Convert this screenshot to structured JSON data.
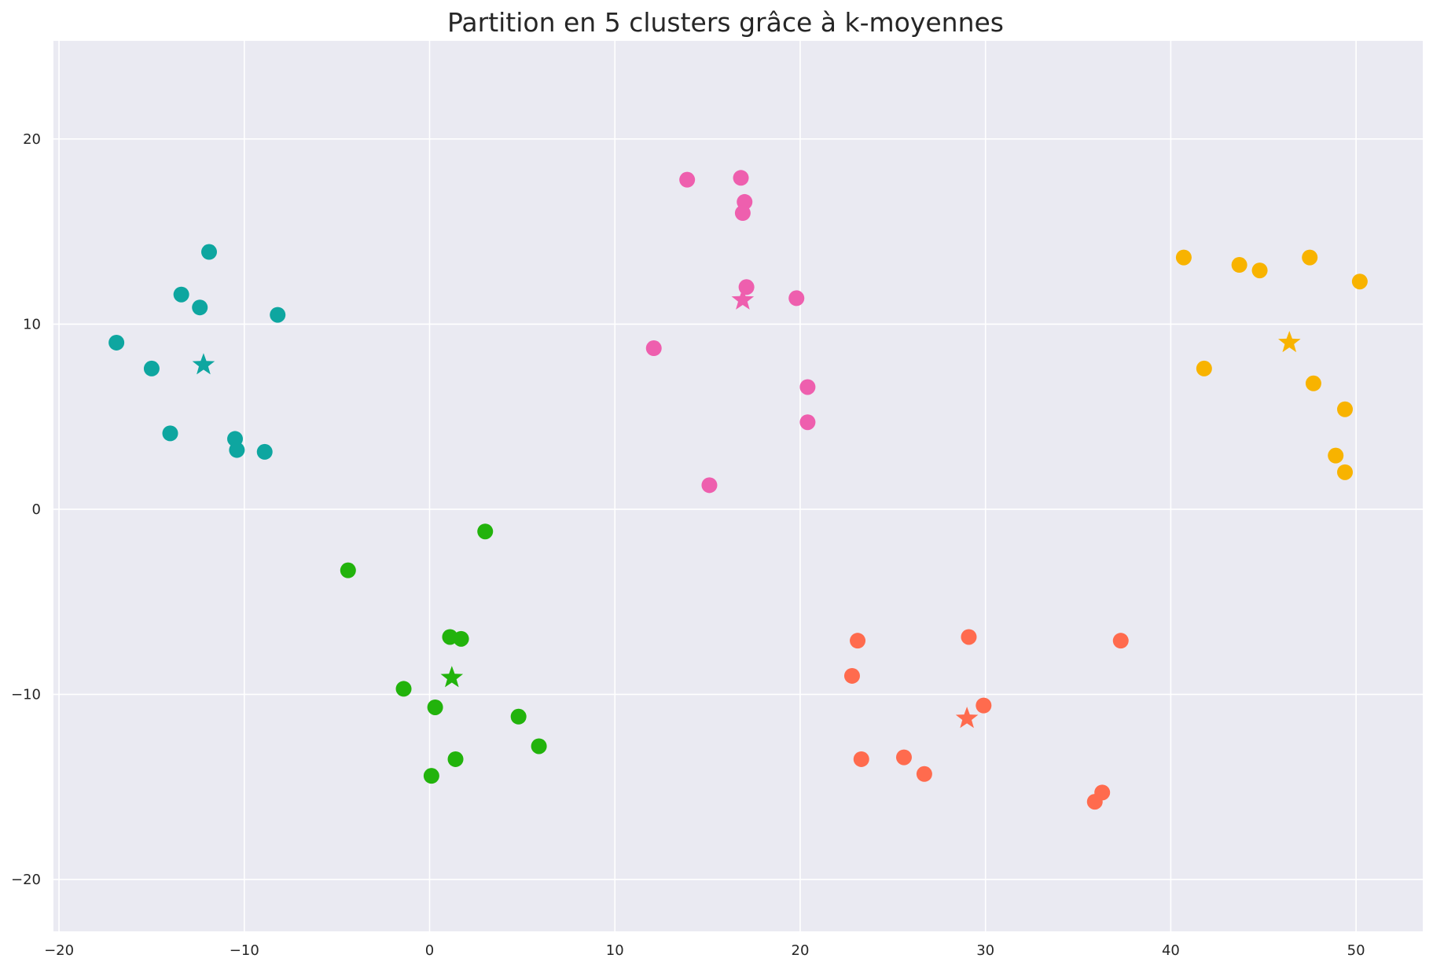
{
  "chart_data": {
    "type": "scatter",
    "title": "Partition en 5 clusters grâce à k-moyennes",
    "xlabel": "",
    "ylabel": "",
    "xlim": [
      -20.3,
      53.6
    ],
    "ylim": [
      -22.8,
      25.3
    ],
    "xticks": [
      -20,
      -10,
      0,
      10,
      20,
      30,
      40,
      50
    ],
    "yticks": [
      -20,
      -10,
      0,
      10,
      20
    ],
    "xtick_labels": [
      "−20",
      "−10",
      "0",
      "10",
      "20",
      "30",
      "40",
      "50"
    ],
    "ytick_labels": [
      "−20",
      "−10",
      "0",
      "10",
      "20"
    ],
    "grid": true,
    "background": "#eaeaf2",
    "legend": "none",
    "series": [
      {
        "color": "#0ea6a0",
        "points": [
          {
            "x": -11.9,
            "y": 13.9
          },
          {
            "x": -13.4,
            "y": 11.6
          },
          {
            "x": -12.4,
            "y": 10.9
          },
          {
            "x": -8.2,
            "y": 10.5
          },
          {
            "x": -16.9,
            "y": 9.0
          },
          {
            "x": -15.0,
            "y": 7.6
          },
          {
            "x": -14.0,
            "y": 4.1
          },
          {
            "x": -10.5,
            "y": 3.8
          },
          {
            "x": -10.4,
            "y": 3.2
          },
          {
            "x": -8.9,
            "y": 3.1
          }
        ],
        "centroid": {
          "x": -12.2,
          "y": 7.8
        }
      },
      {
        "color": "#22b30c",
        "points": [
          {
            "x": 3.0,
            "y": -1.2
          },
          {
            "x": -4.4,
            "y": -3.3
          },
          {
            "x": 1.1,
            "y": -6.9
          },
          {
            "x": 1.7,
            "y": -7.0
          },
          {
            "x": -1.4,
            "y": -9.7
          },
          {
            "x": 0.3,
            "y": -10.7
          },
          {
            "x": 4.8,
            "y": -11.2
          },
          {
            "x": 5.9,
            "y": -12.8
          },
          {
            "x": 1.4,
            "y": -13.5
          },
          {
            "x": 0.1,
            "y": -14.4
          }
        ],
        "centroid": {
          "x": 1.2,
          "y": -9.1
        }
      },
      {
        "color": "#ee5fae",
        "points": [
          {
            "x": 13.9,
            "y": 17.8
          },
          {
            "x": 16.8,
            "y": 17.9
          },
          {
            "x": 17.0,
            "y": 16.6
          },
          {
            "x": 16.9,
            "y": 16.0
          },
          {
            "x": 17.1,
            "y": 12.0
          },
          {
            "x": 19.8,
            "y": 11.4
          },
          {
            "x": 12.1,
            "y": 8.7
          },
          {
            "x": 20.4,
            "y": 6.6
          },
          {
            "x": 20.4,
            "y": 4.7
          },
          {
            "x": 15.1,
            "y": 1.3
          }
        ],
        "centroid": {
          "x": 16.9,
          "y": 11.3
        }
      },
      {
        "color": "#ff6b4e",
        "points": [
          {
            "x": 23.1,
            "y": -7.1
          },
          {
            "x": 29.1,
            "y": -6.9
          },
          {
            "x": 37.3,
            "y": -7.1
          },
          {
            "x": 22.8,
            "y": -9.0
          },
          {
            "x": 29.9,
            "y": -10.6
          },
          {
            "x": 23.3,
            "y": -13.5
          },
          {
            "x": 25.6,
            "y": -13.4
          },
          {
            "x": 26.7,
            "y": -14.3
          },
          {
            "x": 36.3,
            "y": -15.3
          },
          {
            "x": 35.9,
            "y": -15.8
          }
        ],
        "centroid": {
          "x": 29.0,
          "y": -11.3
        }
      },
      {
        "color": "#f8b300",
        "points": [
          {
            "x": 40.7,
            "y": 13.6
          },
          {
            "x": 43.7,
            "y": 13.2
          },
          {
            "x": 44.8,
            "y": 12.9
          },
          {
            "x": 47.5,
            "y": 13.6
          },
          {
            "x": 50.2,
            "y": 12.3
          },
          {
            "x": 41.8,
            "y": 7.6
          },
          {
            "x": 47.7,
            "y": 6.8
          },
          {
            "x": 49.4,
            "y": 5.4
          },
          {
            "x": 48.9,
            "y": 2.9
          },
          {
            "x": 49.4,
            "y": 2.0
          }
        ],
        "centroid": {
          "x": 46.4,
          "y": 9.0
        }
      }
    ]
  }
}
